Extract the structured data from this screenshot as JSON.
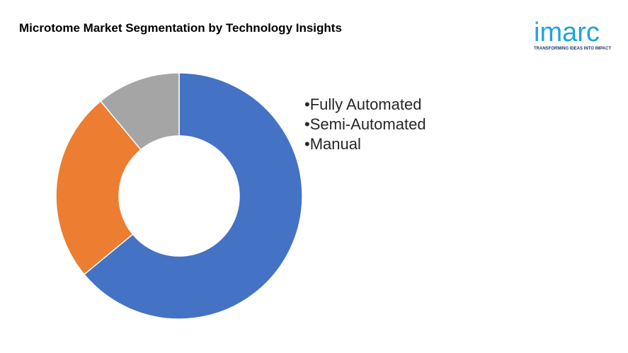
{
  "header": {
    "title": "Microtome Market Segmentation by Technology Insights"
  },
  "logo": {
    "wordmark": "imarc",
    "tagline": "TRANSFORMING IDEAS INTO IMPACT",
    "color": "#1fa3dd",
    "tagline_color": "#1a3b6e"
  },
  "chart_data": {
    "type": "pie",
    "subtype": "donut",
    "title": "",
    "categories": [
      "Fully Automated",
      "Semi-Automated",
      "Manual"
    ],
    "values": [
      64,
      25,
      11
    ],
    "colors": [
      "#4472c4",
      "#ed7d31",
      "#a5a5a5"
    ],
    "legend_position": "right",
    "legend_items": [
      "•Fully Automated",
      "•Semi-Automated",
      "•Manual"
    ]
  }
}
